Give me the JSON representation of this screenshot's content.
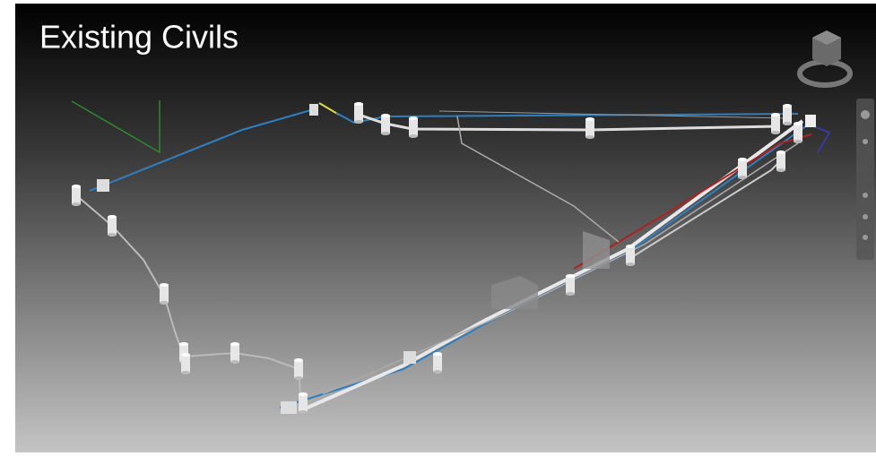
{
  "title": "Existing Civils"
}
